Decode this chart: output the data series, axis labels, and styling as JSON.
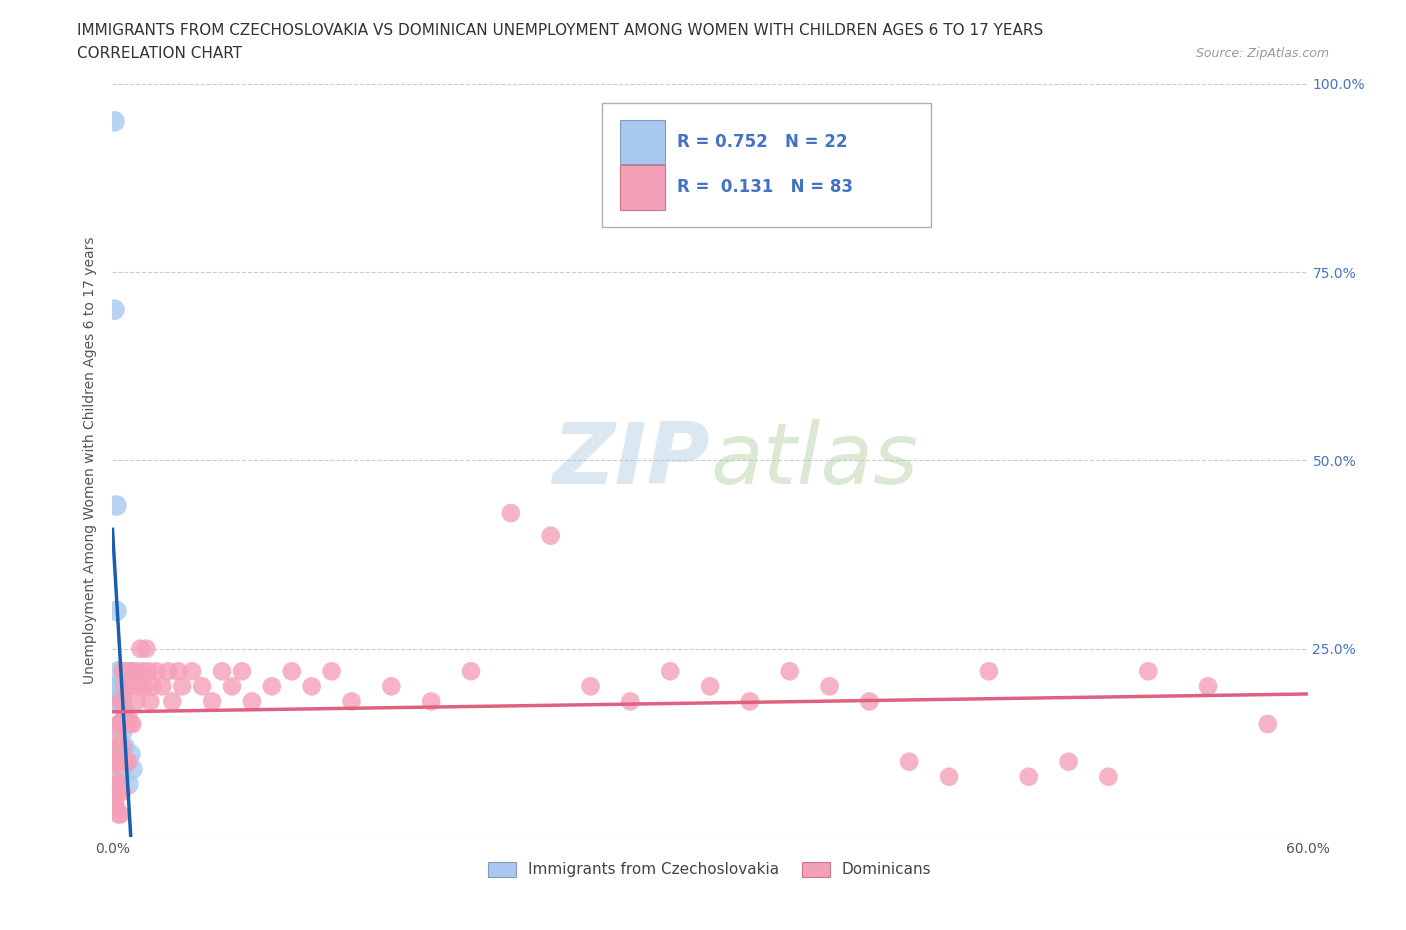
{
  "title_line1": "IMMIGRANTS FROM CZECHOSLOVAKIA VS DOMINICAN UNEMPLOYMENT AMONG WOMEN WITH CHILDREN AGES 6 TO 17 YEARS",
  "title_line2": "CORRELATION CHART",
  "source_text": "Source: ZipAtlas.com",
  "ylabel": "Unemployment Among Women with Children Ages 6 to 17 years",
  "xlim": [
    0.0,
    0.6
  ],
  "ylim": [
    0.0,
    1.0
  ],
  "xticks": [
    0.0,
    0.6
  ],
  "xticklabels": [
    "0.0%",
    "60.0%"
  ],
  "yticks_right": [
    0.0,
    0.25,
    0.5,
    0.75,
    1.0
  ],
  "yticklabels_right": [
    "",
    "25.0%",
    "50.0%",
    "75.0%",
    "100.0%"
  ],
  "grid_yticks": [
    0.0,
    0.25,
    0.5,
    0.75,
    1.0
  ],
  "grid_color": "#cccccc",
  "background_color": "#ffffff",
  "watermark_part1": "ZIP",
  "watermark_part2": "atlas",
  "R_czech": 0.752,
  "N_czech": 22,
  "R_dominican": 0.131,
  "N_dominican": 83,
  "czech_color": "#a8c8f0",
  "czech_line_color": "#1a5fad",
  "dominican_color": "#f4a0b8",
  "dominican_line_color": "#e06080",
  "legend_label_czech": "Immigrants from Czechoslovakia",
  "legend_label_dominican": "Dominicans",
  "czech_scatter_x": [
    0.001,
    0.001,
    0.001,
    0.002,
    0.002,
    0.002,
    0.002,
    0.003,
    0.003,
    0.003,
    0.003,
    0.004,
    0.004,
    0.005,
    0.005,
    0.005,
    0.006,
    0.006,
    0.007,
    0.008,
    0.009,
    0.01
  ],
  "czech_scatter_y": [
    0.95,
    0.7,
    0.18,
    0.44,
    0.3,
    0.2,
    0.1,
    0.22,
    0.18,
    0.12,
    0.07,
    0.2,
    0.15,
    0.19,
    0.14,
    0.09,
    0.17,
    0.12,
    0.1,
    0.07,
    0.11,
    0.09
  ],
  "dominican_scatter_x": [
    0.001,
    0.001,
    0.001,
    0.001,
    0.002,
    0.002,
    0.002,
    0.002,
    0.003,
    0.003,
    0.003,
    0.003,
    0.004,
    0.004,
    0.004,
    0.004,
    0.004,
    0.005,
    0.005,
    0.005,
    0.005,
    0.006,
    0.006,
    0.006,
    0.007,
    0.007,
    0.008,
    0.008,
    0.008,
    0.009,
    0.009,
    0.01,
    0.01,
    0.012,
    0.012,
    0.013,
    0.014,
    0.015,
    0.016,
    0.017,
    0.018,
    0.019,
    0.02,
    0.022,
    0.025,
    0.028,
    0.03,
    0.033,
    0.035,
    0.04,
    0.045,
    0.05,
    0.055,
    0.06,
    0.065,
    0.07,
    0.08,
    0.09,
    0.1,
    0.11,
    0.12,
    0.14,
    0.16,
    0.18,
    0.2,
    0.22,
    0.24,
    0.26,
    0.28,
    0.3,
    0.32,
    0.34,
    0.36,
    0.38,
    0.4,
    0.42,
    0.44,
    0.46,
    0.48,
    0.5,
    0.52,
    0.55,
    0.58
  ],
  "dominican_scatter_y": [
    0.08,
    0.05,
    0.12,
    0.04,
    0.1,
    0.07,
    0.13,
    0.04,
    0.15,
    0.1,
    0.06,
    0.03,
    0.18,
    0.15,
    0.1,
    0.07,
    0.03,
    0.22,
    0.18,
    0.12,
    0.06,
    0.2,
    0.16,
    0.1,
    0.22,
    0.15,
    0.2,
    0.16,
    0.1,
    0.22,
    0.15,
    0.22,
    0.15,
    0.22,
    0.18,
    0.2,
    0.25,
    0.22,
    0.2,
    0.25,
    0.22,
    0.18,
    0.2,
    0.22,
    0.2,
    0.22,
    0.18,
    0.22,
    0.2,
    0.22,
    0.2,
    0.18,
    0.22,
    0.2,
    0.22,
    0.18,
    0.2,
    0.22,
    0.2,
    0.22,
    0.18,
    0.2,
    0.18,
    0.22,
    0.43,
    0.4,
    0.2,
    0.18,
    0.22,
    0.2,
    0.18,
    0.22,
    0.2,
    0.18,
    0.1,
    0.08,
    0.22,
    0.08,
    0.1,
    0.08,
    0.22,
    0.2,
    0.15
  ],
  "title_fontsize": 11,
  "subtitle_fontsize": 11,
  "source_fontsize": 9,
  "axis_label_fontsize": 10,
  "tick_fontsize": 10,
  "legend_fontsize": 12
}
